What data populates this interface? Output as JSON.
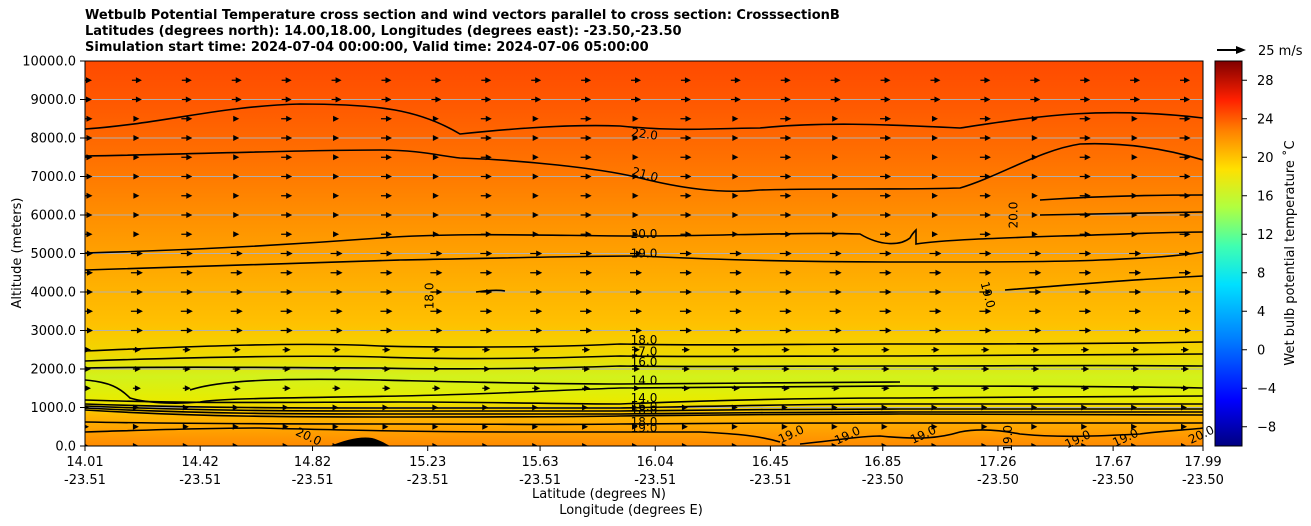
{
  "title_lines": [
    "Wetbulb Potential Temperature cross section and wind vectors parallel to cross section: CrosssectionB",
    "Latitudes (degrees north): 14.00,18.00, Longitudes (degrees east): -23.50,-23.50",
    "Simulation start time: 2024-07-04 00:00:00, Valid time: 2024-07-06 05:00:00"
  ],
  "chart_data": {
    "type": "contour_cross_section",
    "title": "Wetbulb Potential Temperature cross section and wind vectors parallel to cross section: CrosssectionB",
    "xlabel_lat": "Latitude (degrees N)",
    "xlabel_lon": "Longitude (degrees E)",
    "ylabel": "Altitude (meters)",
    "ylim": [
      0,
      10000
    ],
    "yticks": [
      "0.0",
      "1000.0",
      "2000.0",
      "3000.0",
      "4000.0",
      "5000.0",
      "6000.0",
      "7000.0",
      "8000.0",
      "9000.0",
      "10000.0"
    ],
    "xticks": [
      {
        "lat": "14.01",
        "lon": "-23.51"
      },
      {
        "lat": "14.42",
        "lon": "-23.51"
      },
      {
        "lat": "14.82",
        "lon": "-23.51"
      },
      {
        "lat": "15.23",
        "lon": "-23.51"
      },
      {
        "lat": "15.63",
        "lon": "-23.51"
      },
      {
        "lat": "16.04",
        "lon": "-23.51"
      },
      {
        "lat": "16.45",
        "lon": "-23.51"
      },
      {
        "lat": "16.85",
        "lon": "-23.50"
      },
      {
        "lat": "17.26",
        "lon": "-23.50"
      },
      {
        "lat": "17.67",
        "lon": "-23.50"
      },
      {
        "lat": "17.99",
        "lon": "-23.50"
      }
    ],
    "grid": "horizontal",
    "colorbar": {
      "label": "Wet bulb potential temperature ˚C",
      "range": [
        -10,
        30
      ],
      "ticks": [
        "-8",
        "-4",
        "0",
        "4",
        "8",
        "12",
        "16",
        "20",
        "24",
        "28"
      ]
    },
    "quiver_key": "25 m/s",
    "contour_labels": [
      {
        "text": "22.0",
        "lat": 16.0,
        "alt": 8000
      },
      {
        "text": "21.0",
        "lat": 16.0,
        "alt": 6950
      },
      {
        "text": "20.0",
        "lat": 16.0,
        "alt": 5400
      },
      {
        "text": "19.0",
        "lat": 16.0,
        "alt": 4900
      },
      {
        "text": "18.0",
        "lat": 15.25,
        "alt": 3900
      },
      {
        "text": "20.0",
        "lat": 17.33,
        "alt": 6000
      },
      {
        "text": "19.0",
        "lat": 17.21,
        "alt": 3900
      },
      {
        "text": "18.0",
        "lat": 16.0,
        "alt": 2650
      },
      {
        "text": "17.0",
        "lat": 16.0,
        "alt": 2350
      },
      {
        "text": "16.0",
        "lat": 16.0,
        "alt": 2080
      },
      {
        "text": "14.0",
        "lat": 16.0,
        "alt": 1600
      },
      {
        "text": "14.0",
        "lat": 16.0,
        "alt": 1140
      },
      {
        "text": "16.0",
        "lat": 16.0,
        "alt": 920
      },
      {
        "text": "18.0",
        "lat": 16.0,
        "alt": 820
      },
      {
        "text": "18.0",
        "lat": 16.0,
        "alt": 520
      },
      {
        "text": "19.0",
        "lat": 16.0,
        "alt": 360
      },
      {
        "text": "20.0",
        "lat": 14.8,
        "alt": 150
      },
      {
        "text": "19.0",
        "lat": 16.53,
        "alt": 210
      },
      {
        "text": "19.0",
        "lat": 16.73,
        "alt": 180
      },
      {
        "text": "19.0",
        "lat": 17.0,
        "alt": 200
      },
      {
        "text": "19.0",
        "lat": 17.31,
        "alt": 200
      },
      {
        "text": "19.0",
        "lat": 17.55,
        "alt": 80
      },
      {
        "text": "19.0",
        "lat": 17.72,
        "alt": 120
      },
      {
        "text": "20.0",
        "lat": 17.99,
        "alt": 200
      }
    ]
  }
}
